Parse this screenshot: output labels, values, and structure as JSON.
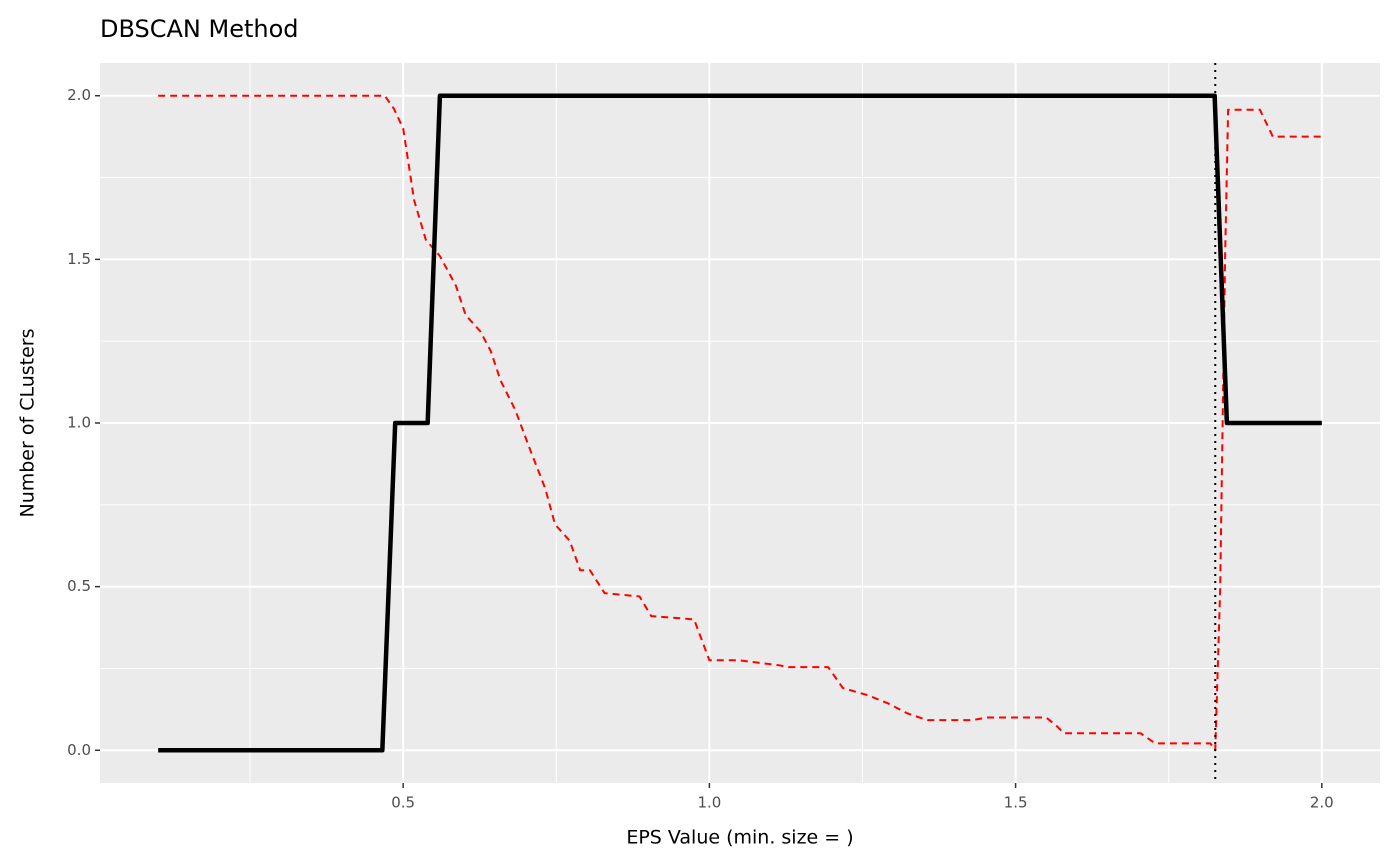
{
  "chart_data": {
    "type": "line",
    "title": "DBSCAN Method",
    "x_label": "EPS Value (min. size = )",
    "y_label": "Number of CLusters",
    "xlim": [
      0.005,
      2.095
    ],
    "ylim": [
      -0.1,
      2.1
    ],
    "xticks": [
      0.5,
      {
        "value": 1,
        "label": "1.0"
      },
      1.5,
      {
        "value": 2,
        "label": "2.0"
      }
    ],
    "yticks": [
      {
        "value": 0,
        "label": "0.0"
      },
      0.5,
      {
        "value": 1,
        "label": "1.0"
      },
      1.5,
      {
        "value": 2,
        "label": "2.0"
      }
    ],
    "xminor": [
      0.25,
      0.75,
      1.25,
      1.75
    ],
    "yminor": [
      0.25,
      0.75,
      1.25,
      1.75
    ],
    "grid": true,
    "vline": 1.826,
    "series": [
      {
        "color": "#000000",
        "dash": "solid",
        "x": [
          0.1,
          0.466,
          0.487,
          0.54,
          0.56,
          1.825,
          1.845,
          2.0
        ],
        "values": [
          0,
          0,
          1,
          1,
          2,
          2,
          1,
          1
        ]
      },
      {
        "color": "#ff0000",
        "dash": "dashed",
        "x": [
          0.1,
          0.47,
          0.485,
          0.5,
          0.518,
          0.537,
          0.56,
          0.586,
          0.602,
          0.626,
          0.643,
          0.659,
          0.683,
          0.707,
          0.732,
          0.748,
          0.772,
          0.789,
          0.805,
          0.829,
          0.886,
          0.905,
          0.975,
          1.0,
          1.048,
          1.113,
          1.129,
          1.194,
          1.218,
          1.259,
          1.291,
          1.323,
          1.356,
          1.429,
          1.453,
          1.55,
          1.566,
          1.579,
          1.704,
          1.728,
          1.818,
          1.826,
          1.834,
          1.842,
          1.847,
          1.899,
          1.92,
          2.0
        ],
        "values": [
          2.0,
          2.0,
          1.96,
          1.9,
          1.68,
          1.56,
          1.51,
          1.42,
          1.33,
          1.28,
          1.22,
          1.13,
          1.04,
          0.92,
          0.8,
          0.69,
          0.64,
          0.55,
          0.55,
          0.48,
          0.47,
          0.41,
          0.4,
          0.275,
          0.275,
          0.26,
          0.254,
          0.254,
          0.19,
          0.168,
          0.144,
          0.113,
          0.092,
          0.092,
          0.1,
          0.1,
          0.076,
          0.052,
          0.052,
          0.021,
          0.021,
          0.0,
          0.49,
          1.5,
          1.957,
          1.957,
          1.875,
          1.875
        ]
      }
    ]
  }
}
